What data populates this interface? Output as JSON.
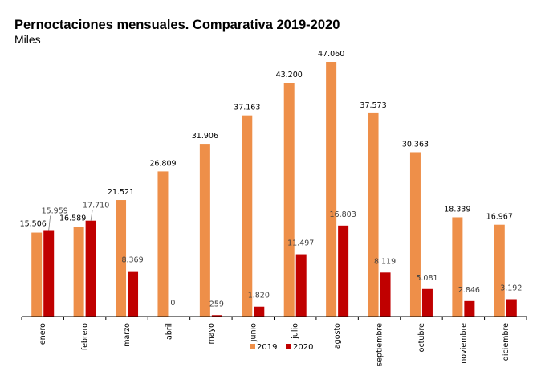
{
  "chart_data": {
    "type": "bar",
    "title": "Pernoctaciones mensuales. Comparativa 2019-2020",
    "subtitle": "Miles",
    "xlabel": "",
    "ylabel": "",
    "ylim": [
      0,
      47060
    ],
    "grid": false,
    "legend_position": "bottom-center",
    "categories": [
      "enero",
      "febrero",
      "marzo",
      "abril",
      "mayo",
      "junio",
      "julio",
      "agosto",
      "septiembre",
      "octubre",
      "noviembre",
      "diciembre"
    ],
    "series": [
      {
        "name": "2019",
        "color": "#EE8F49",
        "values": [
          15506,
          16589,
          21521,
          26809,
          31906,
          37163,
          43200,
          47060,
          37573,
          30363,
          18339,
          16967
        ],
        "labels": [
          "15.506",
          "16.589",
          "21.521",
          "26.809",
          "31.906",
          "37.163",
          "43.200",
          "47.060",
          "37.573",
          "30.363",
          "18.339",
          "16.967"
        ]
      },
      {
        "name": "2020",
        "color": "#C00000",
        "values": [
          15959,
          17710,
          8369,
          0,
          259,
          1820,
          11497,
          16803,
          8119,
          5081,
          2846,
          3192
        ],
        "labels": [
          "15.959",
          "17.710",
          "8.369",
          "0",
          "259",
          "1.820",
          "11.497",
          "16.803",
          "8.119",
          "5.081",
          "2.846",
          "3.192"
        ]
      }
    ]
  }
}
